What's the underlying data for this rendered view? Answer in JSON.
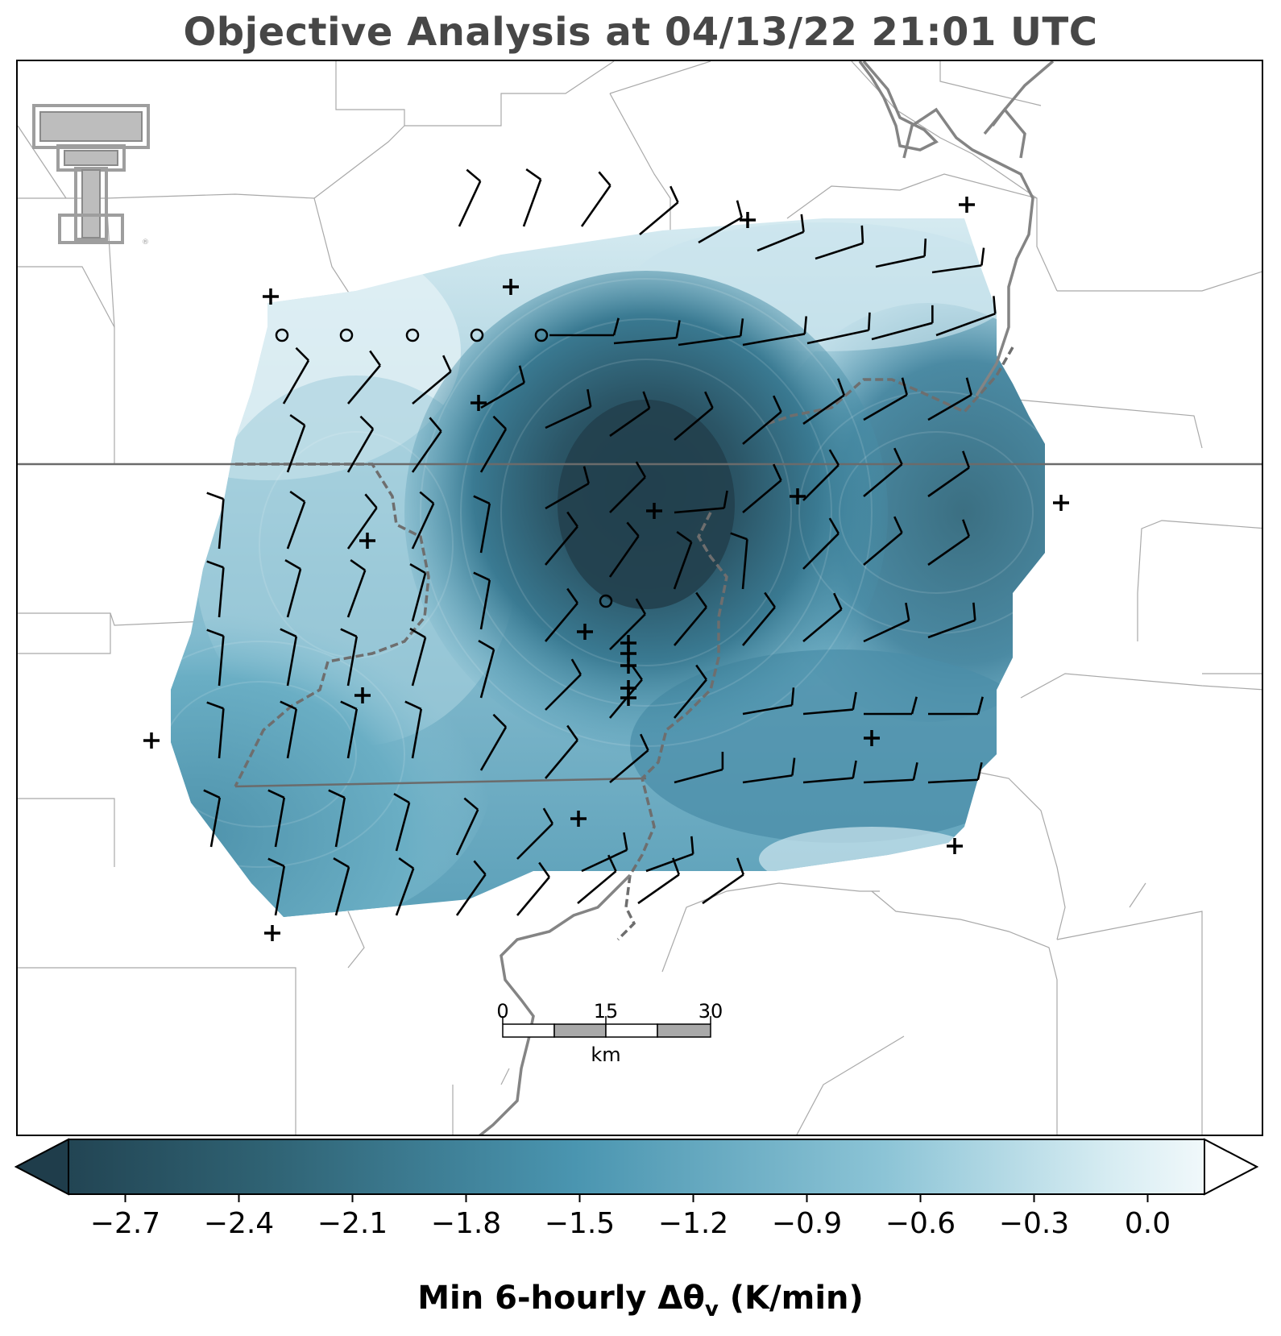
{
  "title": "Objective Analysis at 04/13/22 21:01 UTC",
  "colorbar": {
    "label_prefix": "Min 6-hourly Δθ",
    "label_sub": "v",
    "label_suffix": " (K/min)",
    "ticks": [
      "−2.7",
      "−2.4",
      "−2.1",
      "−1.8",
      "−1.5",
      "−1.2",
      "−0.9",
      "−0.6",
      "−0.3",
      "0.0"
    ],
    "tick_values": [
      -2.7,
      -2.4,
      -2.1,
      -1.8,
      -1.5,
      -1.2,
      -0.9,
      -0.6,
      -0.3,
      0.0
    ],
    "range": [
      -2.85,
      0.15
    ],
    "extend": "both",
    "colors": {
      "low": "#1f3d4b",
      "mid": "#4a95b0",
      "high": "#ffffff"
    }
  },
  "scalebar": {
    "labels": [
      "0",
      "15",
      "30"
    ],
    "unit": "km"
  },
  "logo": {
    "name": "texas-tech-double-t-logo",
    "color": "#9e9e9e"
  },
  "map_style": {
    "field_min_color": "#22404e",
    "barb_color": "#000000",
    "boundary_color": "#999999",
    "state_line_color": "#6b6b6b",
    "river_color": "#808080"
  }
}
